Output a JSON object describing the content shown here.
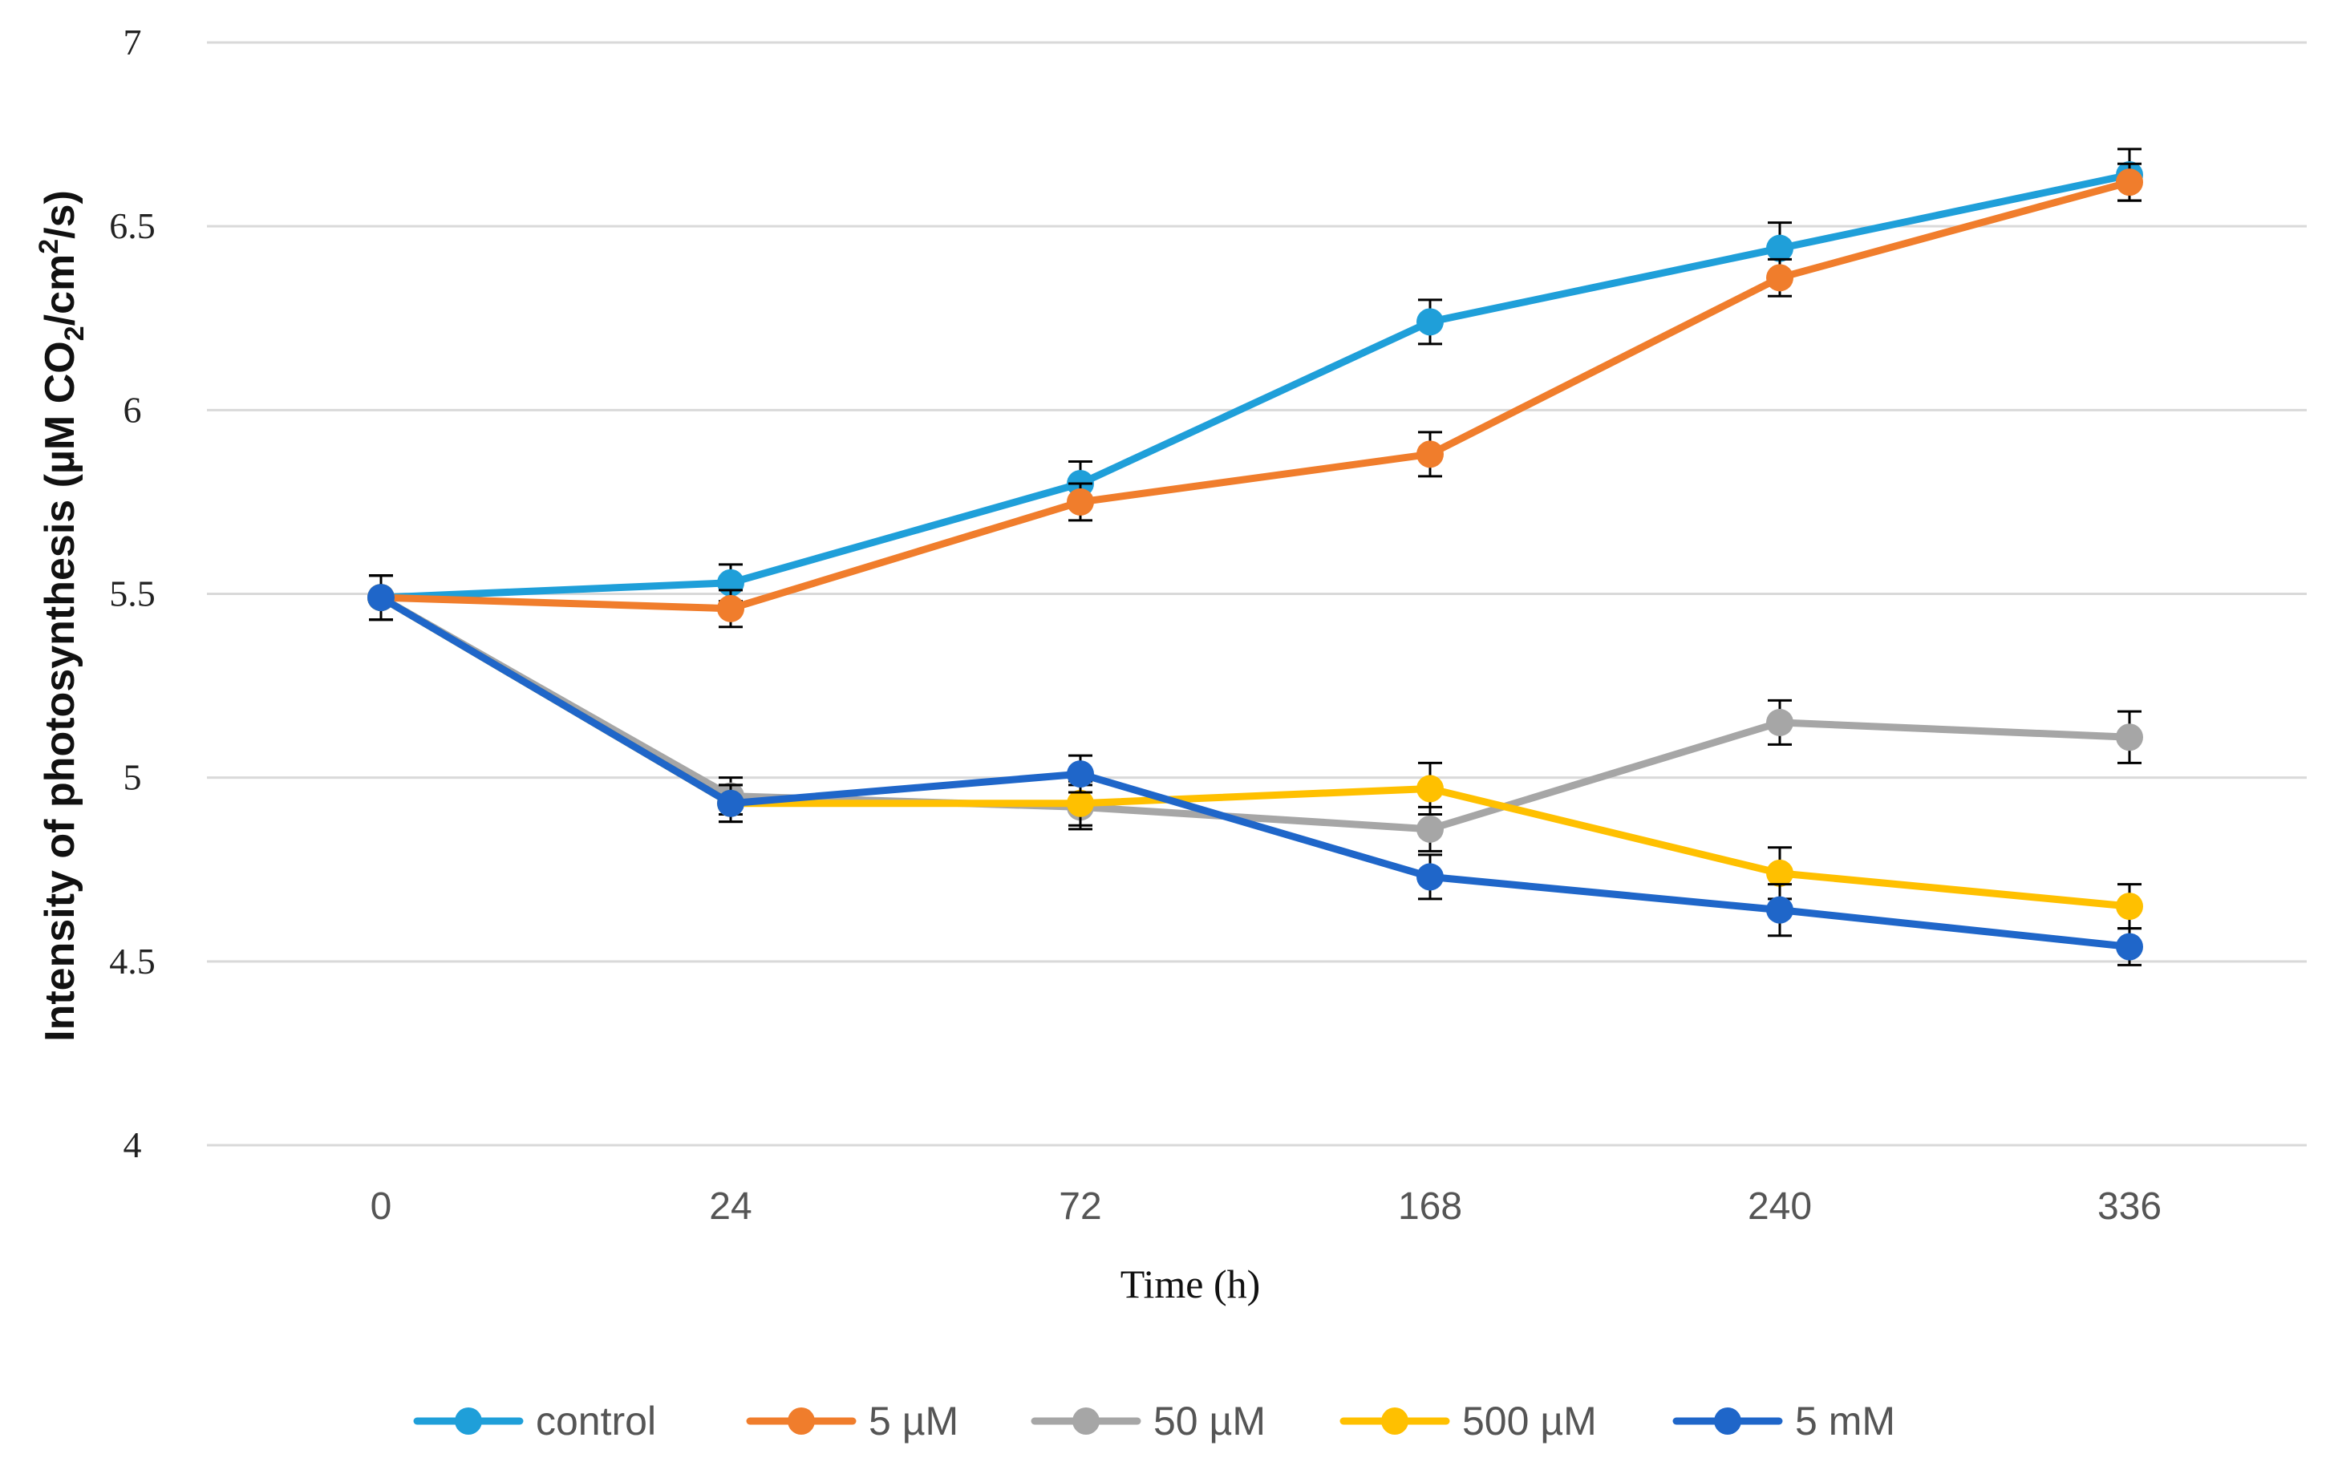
{
  "chart_data": {
    "type": "line",
    "title": "",
    "xlabel": "Time (h)",
    "ylabel_parts": {
      "prefix": "Intensity of photosynthesis (µM CO",
      "sub": "2",
      "middle": "/cm",
      "sup": "2",
      "suffix": "/s)"
    },
    "categories": [
      "0",
      "24",
      "72",
      "168",
      "240",
      "336"
    ],
    "ylim": [
      4,
      7
    ],
    "yticks": [
      "4",
      "4.5",
      "5",
      "5.5",
      "6",
      "6.5",
      "7"
    ],
    "grid": true,
    "legend_position": "bottom",
    "series": [
      {
        "name": "control",
        "color": "#1f9fd9",
        "values": [
          5.49,
          5.53,
          5.8,
          6.24,
          6.44,
          6.64
        ],
        "errors": [
          0.06,
          0.05,
          0.06,
          0.06,
          0.07,
          0.07
        ]
      },
      {
        "name": "5 µM",
        "color": "#f07d2c",
        "values": [
          5.49,
          5.46,
          5.75,
          5.88,
          6.36,
          6.62
        ],
        "errors": [
          0.06,
          0.05,
          0.05,
          0.06,
          0.05,
          0.05
        ]
      },
      {
        "name": "50 µM",
        "color": "#a6a6a6",
        "values": [
          5.49,
          4.95,
          4.92,
          4.86,
          5.15,
          5.11
        ],
        "errors": [
          0.06,
          0.05,
          0.06,
          0.06,
          0.06,
          0.07
        ]
      },
      {
        "name": "500 µM",
        "color": "#ffc000",
        "values": [
          5.49,
          4.93,
          4.93,
          4.97,
          4.74,
          4.65
        ],
        "errors": [
          0.06,
          0.05,
          0.06,
          0.07,
          0.07,
          0.06
        ]
      },
      {
        "name": "5 mM",
        "color": "#1f66c9",
        "values": [
          5.49,
          4.93,
          5.01,
          4.73,
          4.64,
          4.54
        ],
        "errors": [
          0.06,
          0.05,
          0.05,
          0.06,
          0.07,
          0.05
        ]
      }
    ]
  }
}
